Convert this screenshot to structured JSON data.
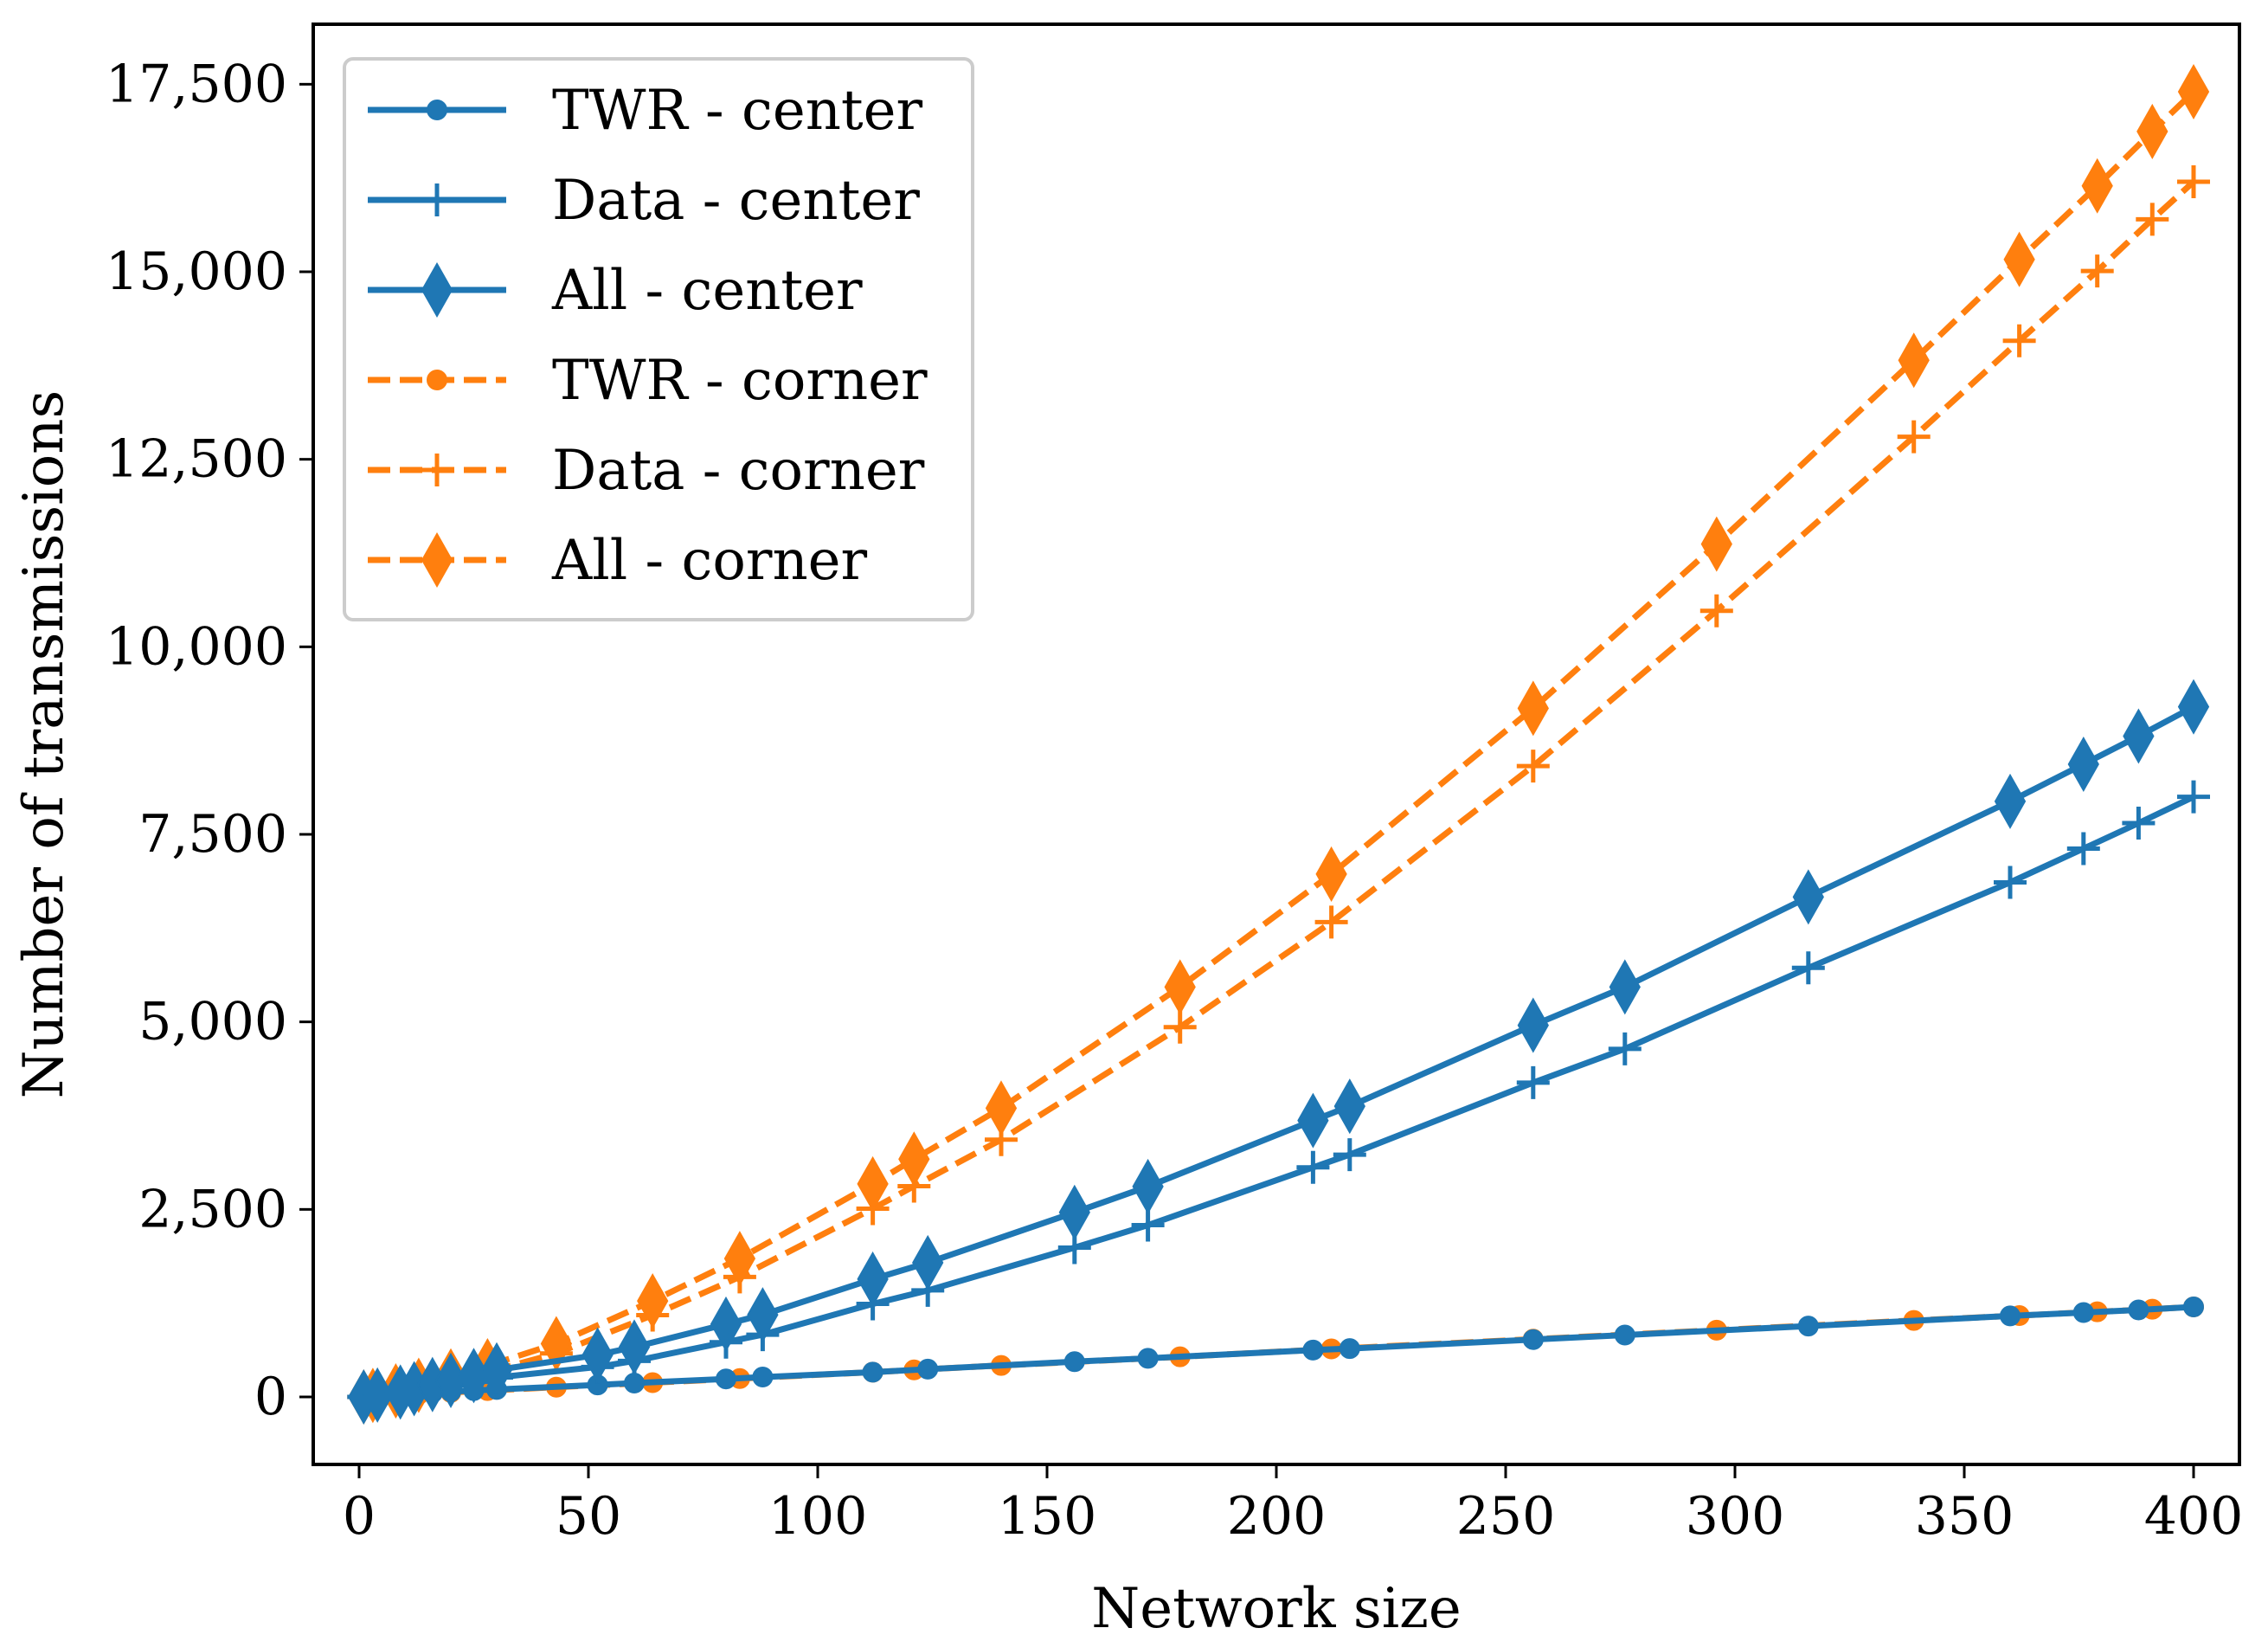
{
  "chart_data": {
    "type": "line",
    "title": "",
    "xlabel": "Network size",
    "ylabel": "Number of transmissions",
    "xlim": [
      -10,
      410
    ],
    "ylim": [
      -900,
      18300
    ],
    "xticks": [
      0,
      50,
      100,
      150,
      200,
      250,
      300,
      350,
      400
    ],
    "xtick_labels": [
      "0",
      "50",
      "100",
      "150",
      "200",
      "250",
      "300",
      "350",
      "400"
    ],
    "yticks": [
      0,
      2500,
      5000,
      7500,
      10000,
      12500,
      15000,
      17500
    ],
    "ytick_labels": [
      "0",
      "2,500",
      "5,000",
      "7,500",
      "10,000",
      "12,500",
      "15,000",
      "17,500"
    ],
    "grid": false,
    "legend_position": "top-left",
    "series": [
      {
        "name": "TWR - center",
        "color": "#1f77b4",
        "dash": "solid",
        "marker": "circle",
        "x": [
          1,
          4,
          9,
          12,
          16,
          20,
          25,
          30,
          52,
          60,
          80,
          88,
          112,
          124,
          156,
          172,
          208,
          216,
          256,
          276,
          316,
          360,
          376,
          388,
          400
        ],
        "y": [
          0,
          8,
          25,
          40,
          55,
          70,
          85,
          100,
          160,
          185,
          240,
          265,
          330,
          370,
          470,
          515,
          625,
          645,
          765,
          825,
          945,
          1080,
          1125,
          1160,
          1200
        ]
      },
      {
        "name": "Data - center",
        "color": "#1f77b4",
        "dash": "solid",
        "marker": "plus",
        "x": [
          1,
          4,
          9,
          12,
          16,
          20,
          25,
          30,
          52,
          60,
          80,
          88,
          112,
          124,
          156,
          172,
          208,
          216,
          256,
          276,
          316,
          360,
          376,
          388,
          400
        ],
        "y": [
          0,
          15,
          40,
          70,
          110,
          150,
          200,
          260,
          400,
          480,
          730,
          830,
          1240,
          1420,
          1990,
          2290,
          3060,
          3230,
          4190,
          4640,
          5720,
          6860,
          7310,
          7650,
          8000
        ]
      },
      {
        "name": "All - center",
        "color": "#1f77b4",
        "dash": "solid",
        "marker": "diamond",
        "x": [
          1,
          4,
          9,
          12,
          16,
          20,
          25,
          30,
          52,
          60,
          80,
          88,
          112,
          124,
          156,
          172,
          208,
          216,
          256,
          276,
          316,
          360,
          376,
          388,
          400
        ],
        "y": [
          0,
          25,
          65,
          110,
          165,
          220,
          285,
          360,
          560,
          665,
          970,
          1095,
          1570,
          1790,
          2460,
          2805,
          3685,
          3875,
          4955,
          5465,
          6665,
          7940,
          8435,
          8810,
          9200
        ]
      },
      {
        "name": "TWR - corner",
        "color": "#ff7f0e",
        "dash": "dashed",
        "marker": "circle",
        "x": [
          1,
          3,
          8,
          13,
          20,
          28,
          43,
          64,
          83,
          112,
          121,
          140,
          179,
          212,
          256,
          296,
          339,
          362,
          379,
          391,
          400
        ],
        "y": [
          0,
          5,
          20,
          35,
          60,
          85,
          130,
          190,
          245,
          330,
          360,
          420,
          535,
          640,
          770,
          890,
          1020,
          1085,
          1135,
          1170,
          1200
        ]
      },
      {
        "name": "Data - corner",
        "color": "#ff7f0e",
        "dash": "dashed",
        "marker": "plus",
        "x": [
          1,
          3,
          8,
          13,
          20,
          28,
          43,
          64,
          83,
          112,
          121,
          140,
          179,
          212,
          256,
          296,
          339,
          362,
          379,
          391,
          400
        ],
        "y": [
          0,
          15,
          60,
          120,
          220,
          330,
          580,
          1090,
          1600,
          2510,
          2810,
          3430,
          4930,
          6330,
          8410,
          10480,
          12800,
          14080,
          15010,
          15700,
          16200
        ]
      },
      {
        "name": "All - corner",
        "color": "#ff7f0e",
        "dash": "dashed",
        "marker": "diamond",
        "x": [
          1,
          3,
          8,
          13,
          20,
          28,
          43,
          64,
          83,
          112,
          121,
          140,
          179,
          212,
          256,
          296,
          339,
          362,
          379,
          391,
          400
        ],
        "y": [
          0,
          20,
          80,
          155,
          280,
          415,
          710,
          1280,
          1845,
          2840,
          3170,
          3850,
          5465,
          6970,
          9180,
          11370,
          13820,
          15165,
          16145,
          16870,
          17400
        ]
      }
    ]
  }
}
